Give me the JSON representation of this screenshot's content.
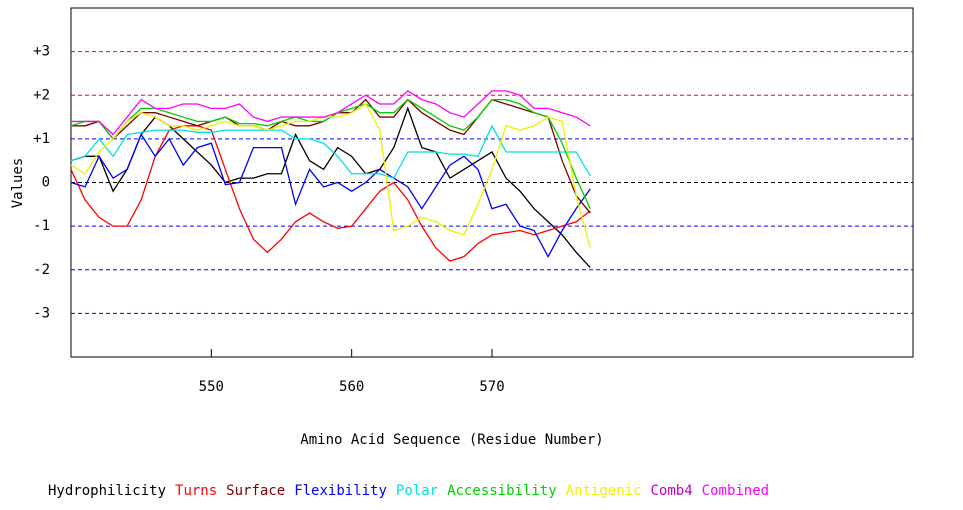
{
  "chart_data": {
    "type": "line",
    "x_label": "Amino Acid Sequence (Residue Number)",
    "y_label": "Values",
    "xlim": [
      540,
      600
    ],
    "xticks": [
      550,
      560,
      570
    ],
    "ylim": [
      -4,
      4
    ],
    "yticks": [
      {
        "value": 3,
        "label": "+3"
      },
      {
        "value": 2,
        "label": "+2"
      },
      {
        "value": 1,
        "label": "+1"
      },
      0,
      -1,
      -2,
      -3
    ],
    "grid": true,
    "grid_colors": [
      "#ff0000",
      "#ff0000",
      "#0000ff",
      "#000000",
      "#0000ff",
      "#0000ff",
      "#0000ff"
    ],
    "legend": "bottom",
    "x": [
      540,
      541,
      542,
      543,
      544,
      545,
      546,
      547,
      548,
      549,
      550,
      551,
      552,
      553,
      554,
      555,
      556,
      557,
      558,
      559,
      560,
      561,
      562,
      563,
      564,
      565,
      566,
      567,
      568,
      569,
      570,
      571,
      572,
      573,
      574,
      575,
      576,
      577
    ],
    "series": [
      {
        "name": "Hydrophilicity",
        "color": "#000000",
        "values": [
          0.5,
          0.6,
          0.6,
          -0.2,
          0.3,
          1.1,
          1.5,
          1.3,
          1.0,
          0.7,
          0.4,
          0.0,
          0.1,
          0.1,
          0.2,
          0.2,
          1.1,
          0.5,
          0.3,
          0.8,
          0.6,
          0.2,
          0.3,
          0.8,
          1.7,
          0.8,
          0.7,
          0.1,
          0.3,
          0.5,
          0.7,
          0.1,
          -0.2,
          -0.6,
          -0.9,
          -1.2,
          -1.6,
          -1.95
        ]
      },
      {
        "name": "Turns",
        "color": "#ff0000",
        "values": [
          0.3,
          -0.4,
          -0.8,
          -1.0,
          -1.0,
          -0.4,
          0.6,
          1.2,
          1.3,
          1.3,
          1.2,
          0.3,
          -0.6,
          -1.3,
          -1.6,
          -1.3,
          -0.9,
          -0.7,
          -0.9,
          -1.05,
          -1.0,
          -0.6,
          -0.2,
          0.0,
          -0.4,
          -1.0,
          -1.5,
          -1.8,
          -1.7,
          -1.4,
          -1.2,
          -1.15,
          -1.1,
          -1.2,
          -1.1,
          -1.0,
          -0.9,
          -0.65
        ]
      },
      {
        "name": "Surface",
        "color": "#800000",
        "values": [
          1.3,
          1.3,
          1.4,
          1.0,
          1.3,
          1.6,
          1.6,
          1.5,
          1.4,
          1.3,
          1.4,
          1.5,
          1.3,
          1.3,
          1.2,
          1.4,
          1.3,
          1.3,
          1.4,
          1.6,
          1.6,
          1.9,
          1.5,
          1.5,
          1.9,
          1.6,
          1.4,
          1.2,
          1.1,
          1.5,
          1.9,
          1.8,
          1.7,
          1.6,
          1.5,
          0.5,
          -0.3,
          -0.7
        ]
      },
      {
        "name": "Flexibility",
        "color": "#0000ff",
        "values": [
          0.0,
          -0.1,
          0.6,
          0.1,
          0.3,
          1.1,
          0.6,
          1.0,
          0.4,
          0.8,
          0.9,
          -0.05,
          0.0,
          0.8,
          0.8,
          0.8,
          -0.5,
          0.3,
          -0.1,
          0.0,
          -0.2,
          0.0,
          0.3,
          0.1,
          -0.1,
          -0.6,
          -0.1,
          0.4,
          0.6,
          0.3,
          -0.6,
          -0.5,
          -1.0,
          -1.1,
          -1.7,
          -1.1,
          -0.6,
          -0.15
        ]
      },
      {
        "name": "Polar",
        "color": "#00e0e0",
        "values": [
          0.5,
          0.6,
          1.0,
          0.6,
          1.1,
          1.15,
          1.2,
          1.2,
          1.2,
          1.15,
          1.15,
          1.2,
          1.2,
          1.2,
          1.2,
          1.2,
          1.0,
          1.0,
          0.9,
          0.6,
          0.2,
          0.2,
          0.2,
          0.1,
          0.7,
          0.7,
          0.7,
          0.65,
          0.65,
          0.6,
          1.3,
          0.7,
          0.7,
          0.7,
          0.7,
          0.7,
          0.7,
          0.15
        ]
      },
      {
        "name": "Accessibility",
        "color": "#00d000",
        "values": [
          1.3,
          1.4,
          1.4,
          1.0,
          1.4,
          1.7,
          1.7,
          1.6,
          1.5,
          1.4,
          1.4,
          1.5,
          1.35,
          1.35,
          1.3,
          1.4,
          1.5,
          1.4,
          1.4,
          1.6,
          1.7,
          1.8,
          1.6,
          1.6,
          1.9,
          1.7,
          1.5,
          1.3,
          1.2,
          1.5,
          1.9,
          1.9,
          1.8,
          1.6,
          1.5,
          0.9,
          0.1,
          -0.6
        ]
      },
      {
        "name": "Antigenic",
        "color": "#f0f000",
        "values": [
          0.4,
          0.2,
          0.7,
          1.0,
          1.4,
          1.6,
          1.5,
          1.3,
          1.3,
          1.2,
          1.3,
          1.4,
          1.3,
          1.3,
          1.2,
          1.3,
          1.4,
          1.4,
          1.5,
          1.5,
          1.6,
          1.8,
          1.2,
          -1.1,
          -1.0,
          -0.8,
          -0.9,
          -1.1,
          -1.2,
          -0.5,
          0.3,
          1.3,
          1.2,
          1.3,
          1.5,
          1.4,
          -0.3,
          -1.5
        ]
      },
      {
        "name": "Comb4",
        "color": "#c000c0",
        "values": [
          null,
          null,
          null,
          null,
          null,
          null,
          null,
          null,
          null,
          null,
          null,
          null,
          null,
          null,
          null,
          null,
          null,
          null,
          null,
          null,
          null,
          null,
          null,
          null,
          null,
          null,
          null,
          null,
          null,
          null,
          null,
          null,
          null,
          null,
          null,
          null,
          null,
          null
        ]
      },
      {
        "name": "Combined",
        "color": "#ff00ff",
        "values": [
          1.4,
          1.4,
          1.4,
          1.1,
          1.5,
          1.9,
          1.7,
          1.7,
          1.8,
          1.8,
          1.7,
          1.7,
          1.8,
          1.5,
          1.4,
          1.5,
          1.5,
          1.5,
          1.5,
          1.6,
          1.8,
          2.0,
          1.8,
          1.8,
          2.1,
          1.9,
          1.8,
          1.6,
          1.5,
          1.8,
          2.1,
          2.1,
          2.0,
          1.7,
          1.7,
          1.6,
          1.5,
          1.3
        ]
      }
    ]
  }
}
